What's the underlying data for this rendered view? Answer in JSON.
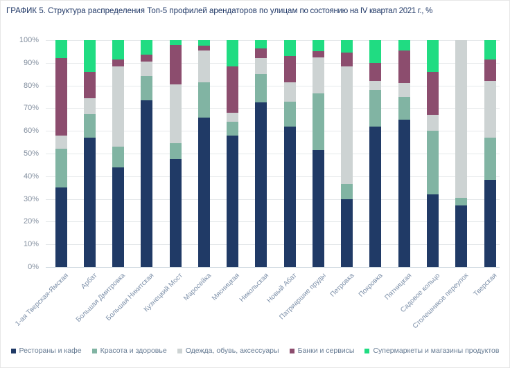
{
  "title": {
    "part1": "ГРАФИК 5. Структура распределения Топ-5 профилей арендаторов по улицам ",
    "part2": "по состоянию на IV квартал 2021 г., %"
  },
  "colors": {
    "background": "#ffffff",
    "title_text": "#1f3766",
    "gridline": "#e5e8ea",
    "axis_line": "#ccd6de",
    "y_tick_text": "#8490a0",
    "x_tick_text": "#7d90a9",
    "legend_text": "#657a92"
  },
  "chart_data": {
    "type": "bar",
    "subtype": "stacked-100",
    "title": "ГРАФИК 5. Структура распределения Топ-5 профилей арендаторов по улицам по состоянию на IV квартал 2021 г., %",
    "xlabel": "",
    "ylabel": "",
    "ylim": [
      0,
      100
    ],
    "grid": true,
    "legend_position": "bottom",
    "y_ticks": [
      "0%",
      "10%",
      "20%",
      "30%",
      "40%",
      "50%",
      "60%",
      "70%",
      "80%",
      "90%",
      "100%"
    ],
    "categories": [
      "1-ая Тверская-Ямская",
      "Арбат",
      "Большая Дмитровка",
      "Большая Никитская",
      "Кузнецкий Мост",
      "Маросейка",
      "Мясницкая",
      "Никольская",
      "Новый Абат",
      "Патриаршие пруды",
      "Петровка",
      "Покровка",
      "Пятницкая",
      "Садовое кольцо",
      "Столешников переулок",
      "Тверская"
    ],
    "series": [
      {
        "name": "Рестораны и кафе",
        "color": "#203a66",
        "values": [
          35,
          57,
          44,
          73.5,
          47.5,
          66,
          58,
          72.5,
          62,
          51.5,
          30,
          62,
          65,
          32,
          27,
          38.5
        ]
      },
      {
        "name": "Красота и здоровье",
        "color": "#81b4a3",
        "values": [
          17,
          10.5,
          9,
          10.5,
          7,
          15.5,
          6,
          12.5,
          11,
          25,
          6.5,
          16,
          10,
          28,
          3.5,
          18.5
        ]
      },
      {
        "name": "Одежда, обувь, аксессуары",
        "color": "#cdd3d3",
        "values": [
          6,
          7,
          35.5,
          6.5,
          26,
          14,
          4,
          7,
          8.5,
          16,
          52,
          4,
          6,
          7,
          69.5,
          25
        ]
      },
      {
        "name": "Банки и сервисы",
        "color": "#8c4d6e",
        "values": [
          34,
          11.5,
          3,
          3,
          17.5,
          2,
          20.5,
          4.5,
          11.5,
          2.5,
          6,
          8,
          14.5,
          19,
          0,
          9.5
        ]
      },
      {
        "name": "Супермаркеты и магазины продуктов",
        "color": "#20dc82",
        "values": [
          8,
          14,
          8.5,
          6.5,
          2,
          2.5,
          11.5,
          3.5,
          7,
          5,
          5.5,
          10,
          4.5,
          14,
          0,
          8.5
        ]
      }
    ]
  }
}
